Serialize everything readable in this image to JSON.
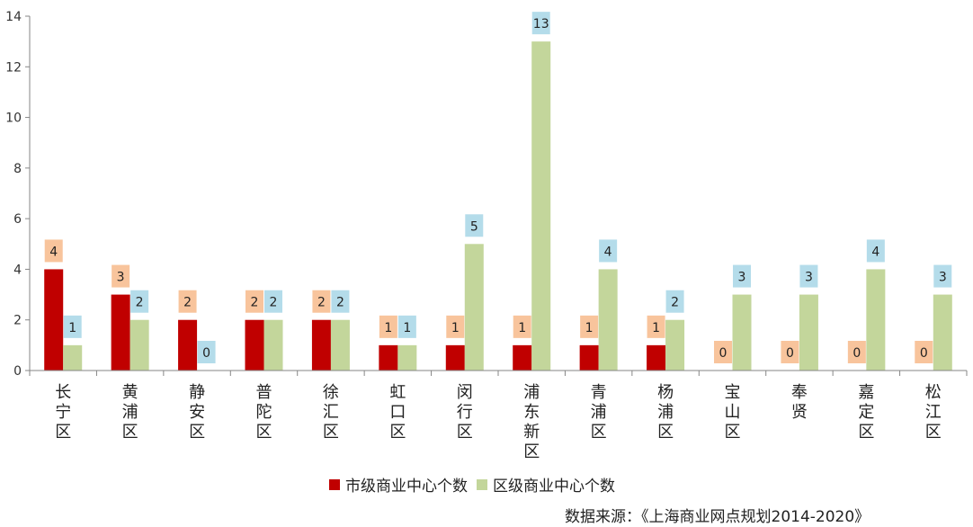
{
  "chart_data": {
    "type": "bar",
    "categories": [
      [
        "长",
        "宁",
        "区"
      ],
      [
        "黄",
        "浦",
        "区"
      ],
      [
        "静",
        "安",
        "区"
      ],
      [
        "普",
        "陀",
        "区"
      ],
      [
        "徐",
        "汇",
        "区"
      ],
      [
        "虹",
        "口",
        "区"
      ],
      [
        "闵",
        "行",
        "区"
      ],
      [
        "浦",
        "东",
        "新",
        "区"
      ],
      [
        "青",
        "浦",
        "区"
      ],
      [
        "杨",
        "浦",
        "区"
      ],
      [
        "宝",
        "山",
        "区"
      ],
      [
        "奉",
        "贤"
      ],
      [
        "嘉",
        "定",
        "区"
      ],
      [
        "松",
        "江",
        "区"
      ]
    ],
    "series": [
      {
        "name": "市级商业中心个数",
        "color": "#c00000",
        "label_bg": "#f8c49c",
        "values": [
          4,
          3,
          2,
          2,
          2,
          1,
          1,
          1,
          1,
          1,
          0,
          0,
          0,
          0
        ]
      },
      {
        "name": "区级商业中心个数",
        "color": "#c3d69b",
        "label_bg": "#b4dcea",
        "values": [
          1,
          2,
          0,
          2,
          2,
          1,
          5,
          13,
          4,
          2,
          3,
          3,
          4,
          3
        ]
      }
    ],
    "ylim": [
      0,
      14
    ],
    "yticks": [
      0,
      2,
      4,
      6,
      8,
      10,
      12,
      14
    ],
    "grid": false,
    "legend": "bottom-center"
  },
  "source_text": "数据来源：《上海商业网点规划2014-2020》"
}
